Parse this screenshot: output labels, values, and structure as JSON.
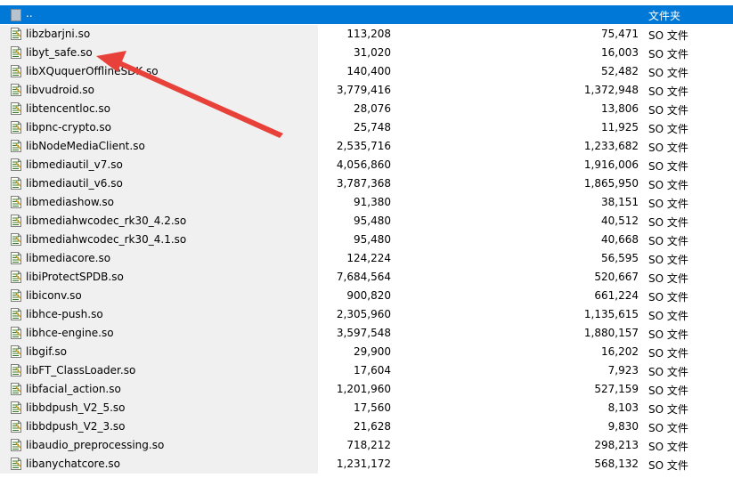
{
  "parent_row": {
    "name": "..",
    "type": "文件夹"
  },
  "files": [
    {
      "name": "libzbarjni.so",
      "size": "113,208",
      "packed": "75,471",
      "type": "SO 文件"
    },
    {
      "name": "libyt_safe.so",
      "size": "31,020",
      "packed": "16,003",
      "type": "SO 文件"
    },
    {
      "name": "libXQuquerOfflineSDK.so",
      "size": "140,400",
      "packed": "52,482",
      "type": "SO 文件"
    },
    {
      "name": "libvudroid.so",
      "size": "3,779,416",
      "packed": "1,372,948",
      "type": "SO 文件"
    },
    {
      "name": "libtencentloc.so",
      "size": "28,076",
      "packed": "13,806",
      "type": "SO 文件"
    },
    {
      "name": "libpnc-crypto.so",
      "size": "25,748",
      "packed": "11,925",
      "type": "SO 文件"
    },
    {
      "name": "libNodeMediaClient.so",
      "size": "2,535,716",
      "packed": "1,233,682",
      "type": "SO 文件"
    },
    {
      "name": "libmediautil_v7.so",
      "size": "4,056,860",
      "packed": "1,916,006",
      "type": "SO 文件"
    },
    {
      "name": "libmediautil_v6.so",
      "size": "3,787,368",
      "packed": "1,865,950",
      "type": "SO 文件"
    },
    {
      "name": "libmediashow.so",
      "size": "91,380",
      "packed": "38,151",
      "type": "SO 文件"
    },
    {
      "name": "libmediahwcodec_rk30_4.2.so",
      "size": "95,480",
      "packed": "40,512",
      "type": "SO 文件"
    },
    {
      "name": "libmediahwcodec_rk30_4.1.so",
      "size": "95,480",
      "packed": "40,668",
      "type": "SO 文件"
    },
    {
      "name": "libmediacore.so",
      "size": "124,224",
      "packed": "56,595",
      "type": "SO 文件"
    },
    {
      "name": "libiProtectSPDB.so",
      "size": "7,684,564",
      "packed": "520,667",
      "type": "SO 文件"
    },
    {
      "name": "libiconv.so",
      "size": "900,820",
      "packed": "661,224",
      "type": "SO 文件"
    },
    {
      "name": "libhce-push.so",
      "size": "2,305,960",
      "packed": "1,135,615",
      "type": "SO 文件"
    },
    {
      "name": "libhce-engine.so",
      "size": "3,597,548",
      "packed": "1,880,157",
      "type": "SO 文件"
    },
    {
      "name": "libgif.so",
      "size": "29,900",
      "packed": "16,202",
      "type": "SO 文件"
    },
    {
      "name": "libFT_ClassLoader.so",
      "size": "17,604",
      "packed": "7,923",
      "type": "SO 文件"
    },
    {
      "name": "libfacial_action.so",
      "size": "1,201,960",
      "packed": "527,159",
      "type": "SO 文件"
    },
    {
      "name": "libbdpush_V2_5.so",
      "size": "17,560",
      "packed": "8,103",
      "type": "SO 文件"
    },
    {
      "name": "libbdpush_V2_3.so",
      "size": "21,628",
      "packed": "9,830",
      "type": "SO 文件"
    },
    {
      "name": "libaudio_preprocessing.so",
      "size": "718,212",
      "packed": "298,213",
      "type": "SO 文件"
    },
    {
      "name": "libanychatcore.so",
      "size": "1,231,172",
      "packed": "568,132",
      "type": "SO 文件"
    }
  ],
  "colors": {
    "selection": "#0078d7",
    "name_column_bg": "#f0f0f0",
    "annotation_arrow": "#e8413a"
  },
  "icons": {
    "parent": "folder-up-icon",
    "file": "so-file-icon",
    "annotation": "red-arrow-annotation"
  }
}
